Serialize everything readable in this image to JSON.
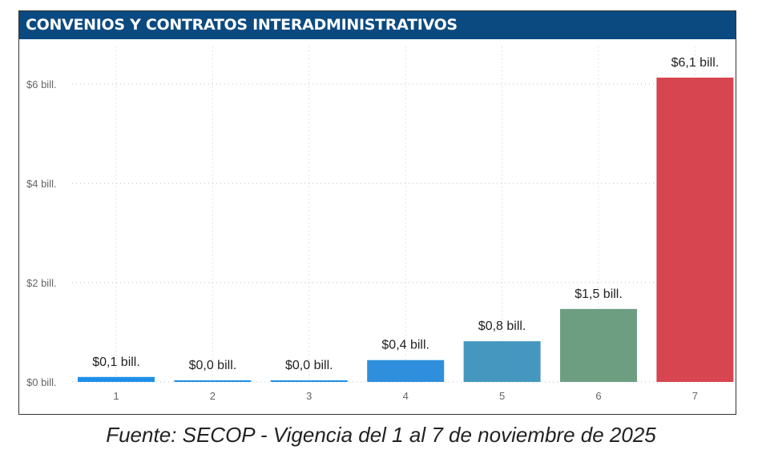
{
  "chart_data": {
    "type": "bar",
    "title": "CONVENIOS Y CONTRATOS INTERADMINISTRATIVOS",
    "categories": [
      "1",
      "2",
      "3",
      "4",
      "5",
      "6",
      "7"
    ],
    "values": [
      0.1,
      0.01,
      0.01,
      0.44,
      0.82,
      1.47,
      6.13
    ],
    "data_labels": [
      "$0,1 bill.",
      "$0,0 bill.",
      "$0,0 bill.",
      "$0,4 bill.",
      "$0,8 bill.",
      "$1,5 bill.",
      "$6,1 bill."
    ],
    "colors": [
      "#1e8fe8",
      "#1e8fe8",
      "#1e8fe8",
      "#2f8fdc",
      "#4597bf",
      "#6e9e82",
      "#d64550"
    ],
    "yticks": [
      0,
      2,
      4,
      6
    ],
    "ytick_labels": [
      "$0 bill.",
      "$2 bill.",
      "$4 bill.",
      "$6 bill."
    ],
    "ylim": [
      0,
      6.4
    ],
    "xlabel": "",
    "ylabel": "",
    "grid": true,
    "header_color": "#0b4a80"
  },
  "caption": "Fuente: SECOP - Vigencia del 1 al 7 de noviembre de 2025"
}
